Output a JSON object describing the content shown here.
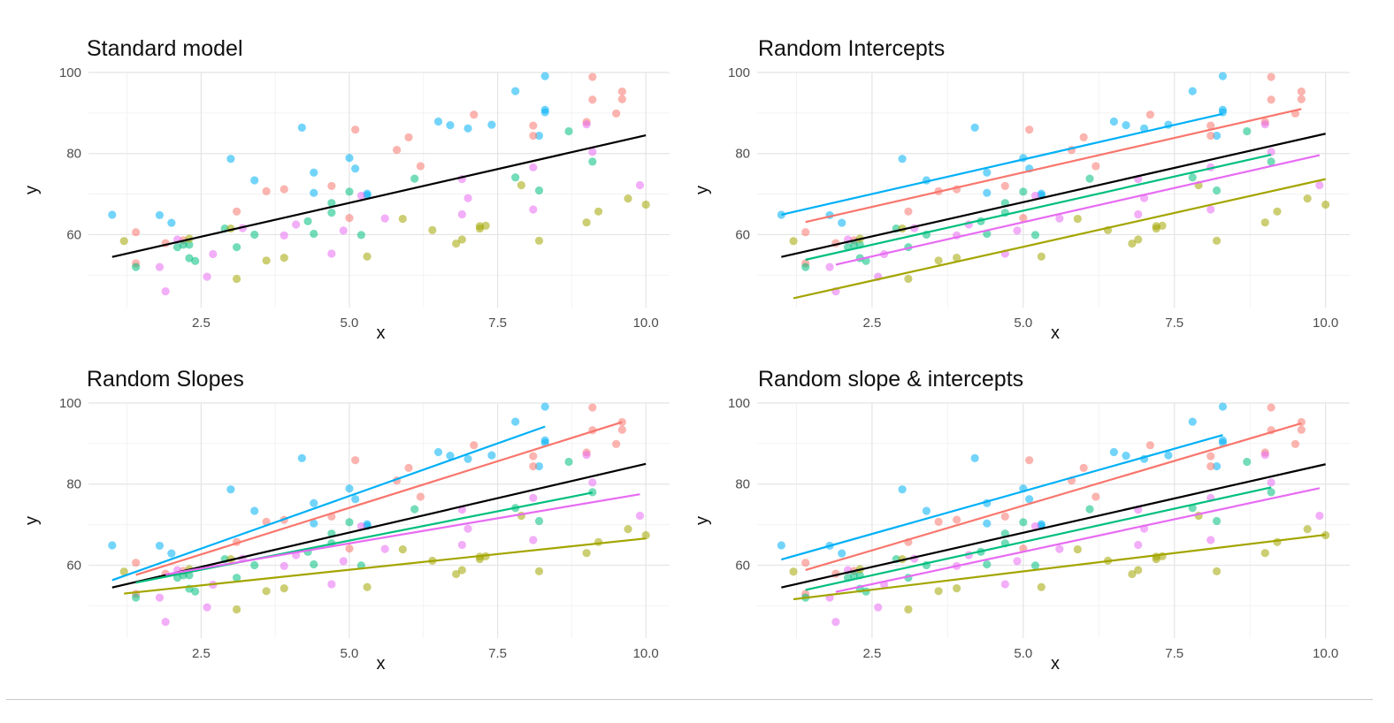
{
  "series_colors": {
    "red": "#F8766D",
    "olive": "#A3A500",
    "green": "#00BF7D",
    "blue": "#00B0F6",
    "magenta": "#E76BF3",
    "overall": "#000000"
  },
  "chart_data": [
    {
      "type": "scatter",
      "title": "Standard model",
      "xlabel": "x",
      "ylabel": "y",
      "xlim": [
        0.6,
        10.4
      ],
      "ylim": [
        42,
        100
      ],
      "xticks": [
        "2.5",
        "5.0",
        "7.5",
        "10.0"
      ],
      "yticks": [
        "60",
        "80",
        "100"
      ],
      "grid": true,
      "lines": [
        {
          "color": "overall",
          "x": [
            1.0,
            10.0
          ],
          "y": [
            54.5,
            84.5
          ]
        }
      ]
    },
    {
      "type": "scatter",
      "title": "Random Intercepts",
      "xlabel": "x",
      "ylabel": "y",
      "xlim": [
        0.6,
        10.4
      ],
      "ylim": [
        42,
        100
      ],
      "xticks": [
        "2.5",
        "5.0",
        "7.5",
        "10.0"
      ],
      "yticks": [
        "60",
        "80",
        "100"
      ],
      "grid": true,
      "lines": [
        {
          "color": "blue",
          "x": [
            1.0,
            8.3
          ],
          "y": [
            64.9,
            89.8
          ]
        },
        {
          "color": "red",
          "x": [
            1.4,
            9.6
          ],
          "y": [
            63.1,
            91.0
          ]
        },
        {
          "color": "overall",
          "x": [
            1.0,
            10.0
          ],
          "y": [
            54.5,
            84.9
          ]
        },
        {
          "color": "green",
          "x": [
            1.4,
            9.1
          ],
          "y": [
            53.8,
            79.7
          ]
        },
        {
          "color": "magenta",
          "x": [
            1.9,
            9.9
          ],
          "y": [
            52.6,
            79.6
          ]
        },
        {
          "color": "olive",
          "x": [
            1.2,
            10.0
          ],
          "y": [
            44.3,
            73.7
          ]
        }
      ]
    },
    {
      "type": "scatter",
      "title": "Random Slopes",
      "xlabel": "x",
      "ylabel": "y",
      "xlim": [
        0.6,
        10.4
      ],
      "ylim": [
        42,
        100
      ],
      "xticks": [
        "2.5",
        "5.0",
        "7.5",
        "10.0"
      ],
      "yticks": [
        "60",
        "80",
        "100"
      ],
      "grid": true,
      "lines": [
        {
          "color": "blue",
          "x": [
            1.0,
            8.3
          ],
          "y": [
            56.3,
            94.2
          ]
        },
        {
          "color": "red",
          "x": [
            1.4,
            9.6
          ],
          "y": [
            57.6,
            95.3
          ]
        },
        {
          "color": "overall",
          "x": [
            1.0,
            10.0
          ],
          "y": [
            54.5,
            85.0
          ]
        },
        {
          "color": "green",
          "x": [
            1.4,
            9.1
          ],
          "y": [
            55.7,
            77.9
          ]
        },
        {
          "color": "magenta",
          "x": [
            1.9,
            9.9
          ],
          "y": [
            57.7,
            77.5
          ]
        },
        {
          "color": "olive",
          "x": [
            1.2,
            10.0
          ],
          "y": [
            53.0,
            66.6
          ]
        }
      ]
    },
    {
      "type": "scatter",
      "title": "Random slope & intercepts",
      "xlabel": "x",
      "ylabel": "y",
      "xlim": [
        0.6,
        10.4
      ],
      "ylim": [
        42,
        100
      ],
      "xticks": [
        "2.5",
        "5.0",
        "7.5",
        "10.0"
      ],
      "yticks": [
        "60",
        "80",
        "100"
      ],
      "grid": true,
      "lines": [
        {
          "color": "blue",
          "x": [
            1.0,
            8.3
          ],
          "y": [
            61.4,
            92.1
          ]
        },
        {
          "color": "red",
          "x": [
            1.4,
            9.6
          ],
          "y": [
            58.8,
            95.0
          ]
        },
        {
          "color": "overall",
          "x": [
            1.0,
            10.0
          ],
          "y": [
            54.5,
            84.9
          ]
        },
        {
          "color": "green",
          "x": [
            1.4,
            9.1
          ],
          "y": [
            53.9,
            79.2
          ]
        },
        {
          "color": "magenta",
          "x": [
            1.9,
            9.9
          ],
          "y": [
            53.4,
            79.0
          ]
        },
        {
          "color": "olive",
          "x": [
            1.2,
            10.0
          ],
          "y": [
            51.6,
            67.5
          ]
        }
      ]
    }
  ],
  "shared_points": [
    {
      "series": "blue",
      "pts": [
        [
          1.0,
          64.9
        ],
        [
          1.8,
          64.8
        ],
        [
          2.0,
          62.9
        ],
        [
          3.0,
          78.7
        ],
        [
          3.4,
          73.4
        ],
        [
          4.2,
          86.4
        ],
        [
          4.4,
          75.3
        ],
        [
          4.4,
          70.3
        ],
        [
          5.0,
          78.9
        ],
        [
          5.1,
          76.3
        ],
        [
          5.3,
          69.7
        ],
        [
          5.3,
          70.1
        ],
        [
          6.5,
          87.9
        ],
        [
          6.7,
          87.0
        ],
        [
          7.0,
          86.2
        ],
        [
          7.4,
          87.1
        ],
        [
          7.8,
          95.4
        ],
        [
          8.2,
          84.4
        ],
        [
          8.3,
          90.8
        ],
        [
          8.3,
          90.2
        ],
        [
          8.3,
          99.1
        ]
      ]
    },
    {
      "series": "red",
      "pts": [
        [
          1.4,
          60.6
        ],
        [
          1.4,
          52.9
        ],
        [
          1.9,
          57.9
        ],
        [
          2.2,
          58.6
        ],
        [
          3.1,
          65.7
        ],
        [
          3.6,
          70.7
        ],
        [
          3.9,
          71.2
        ],
        [
          4.7,
          72.0
        ],
        [
          5.0,
          64.1
        ],
        [
          5.1,
          85.9
        ],
        [
          5.8,
          80.9
        ],
        [
          6.0,
          84.0
        ],
        [
          6.2,
          76.9
        ],
        [
          7.1,
          89.6
        ],
        [
          8.1,
          86.9
        ],
        [
          8.1,
          84.4
        ],
        [
          9.0,
          87.8
        ],
        [
          9.1,
          93.3
        ],
        [
          9.1,
          98.9
        ],
        [
          9.5,
          89.9
        ],
        [
          9.6,
          95.3
        ],
        [
          9.6,
          93.4
        ]
      ]
    },
    {
      "series": "green",
      "pts": [
        [
          1.4,
          52.0
        ],
        [
          2.1,
          56.9
        ],
        [
          2.2,
          57.5
        ],
        [
          2.3,
          57.5
        ],
        [
          2.3,
          54.2
        ],
        [
          2.4,
          53.5
        ],
        [
          2.9,
          61.5
        ],
        [
          3.1,
          56.9
        ],
        [
          3.4,
          60.0
        ],
        [
          4.3,
          63.3
        ],
        [
          4.4,
          60.2
        ],
        [
          4.7,
          65.4
        ],
        [
          4.7,
          67.8
        ],
        [
          5.0,
          70.6
        ],
        [
          5.2,
          59.9
        ],
        [
          6.1,
          73.8
        ],
        [
          7.8,
          74.1
        ],
        [
          8.2,
          70.9
        ],
        [
          8.7,
          85.5
        ],
        [
          9.1,
          78.0
        ]
      ]
    },
    {
      "series": "magenta",
      "pts": [
        [
          1.8,
          52.0
        ],
        [
          1.9,
          46.0
        ],
        [
          2.1,
          58.8
        ],
        [
          2.6,
          49.6
        ],
        [
          2.7,
          55.2
        ],
        [
          3.2,
          61.6
        ],
        [
          3.9,
          59.8
        ],
        [
          4.1,
          62.5
        ],
        [
          4.7,
          55.3
        ],
        [
          4.9,
          61.0
        ],
        [
          5.2,
          69.6
        ],
        [
          5.6,
          64.0
        ],
        [
          6.9,
          65.0
        ],
        [
          6.9,
          73.7
        ],
        [
          7.0,
          69.0
        ],
        [
          8.1,
          66.2
        ],
        [
          8.1,
          76.6
        ],
        [
          9.0,
          87.2
        ],
        [
          9.1,
          80.4
        ],
        [
          9.9,
          72.2
        ]
      ]
    },
    {
      "series": "olive",
      "pts": [
        [
          1.2,
          58.4
        ],
        [
          2.3,
          59.0
        ],
        [
          3.0,
          61.5
        ],
        [
          3.1,
          49.1
        ],
        [
          3.6,
          53.6
        ],
        [
          3.9,
          54.3
        ],
        [
          5.3,
          54.6
        ],
        [
          5.9,
          63.9
        ],
        [
          6.4,
          61.1
        ],
        [
          6.8,
          57.8
        ],
        [
          6.9,
          58.8
        ],
        [
          7.2,
          61.5
        ],
        [
          7.2,
          62.1
        ],
        [
          7.3,
          62.2
        ],
        [
          7.9,
          72.2
        ],
        [
          8.2,
          58.5
        ],
        [
          9.0,
          63.0
        ],
        [
          9.2,
          65.7
        ],
        [
          9.7,
          68.9
        ],
        [
          10.0,
          67.4
        ]
      ]
    }
  ]
}
